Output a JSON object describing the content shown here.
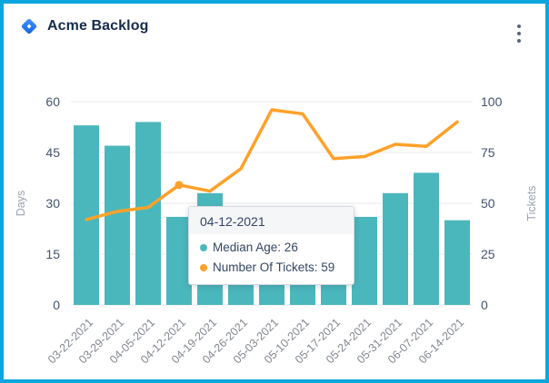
{
  "header": {
    "title": "Acme Backlog"
  },
  "colors": {
    "frame_border": "#0AA6DD",
    "bar": "#4AB7BD",
    "line": "#FFA128",
    "tick_text": "#42526E",
    "axis_name_text": "#9AA2B0",
    "x_label_text": "#82878F",
    "gridline": "#E9EAEC",
    "title_text": "#172B4D",
    "tooltip_text": "#344563"
  },
  "chart_data": {
    "type": "bar",
    "subtype": "combo bar+line, dual axis",
    "title": "",
    "legend": "none",
    "grid": true,
    "categories": [
      "03-22-2021",
      "03-29-2021",
      "04-05-2021",
      "04-12-2021",
      "04-19-2021",
      "04-26-2021",
      "05-03-2021",
      "05-10-2021",
      "05-17-2021",
      "05-24-2021",
      "05-31-2021",
      "06-07-2021",
      "06-14-2021"
    ],
    "series": [
      {
        "name": "Median Age",
        "type": "bar",
        "axis": "left",
        "color": "#4AB7BD",
        "values": [
          53,
          47,
          54,
          26,
          33,
          6,
          7,
          7,
          7,
          26,
          33,
          39,
          25
        ]
      },
      {
        "name": "Number Of Tickets",
        "type": "line",
        "axis": "right",
        "color": "#FFA128",
        "values": [
          42,
          46,
          48,
          59,
          56,
          67,
          96,
          94,
          72,
          73,
          79,
          78,
          90
        ],
        "active_point_index": 3
      }
    ],
    "left_axis": {
      "label": "Days",
      "ticks": [
        0,
        15,
        30,
        45,
        60
      ],
      "range": [
        0,
        60
      ]
    },
    "right_axis": {
      "label": "Tickets",
      "ticks": [
        0,
        25,
        50,
        75,
        100
      ],
      "range": [
        0,
        100
      ]
    }
  },
  "tooltip": {
    "title": "04-12-2021",
    "items": [
      {
        "label": "Median Age: 26",
        "color": "#4AB7BD"
      },
      {
        "label": "Number Of Tickets: 59",
        "color": "#FFA128"
      }
    ]
  }
}
